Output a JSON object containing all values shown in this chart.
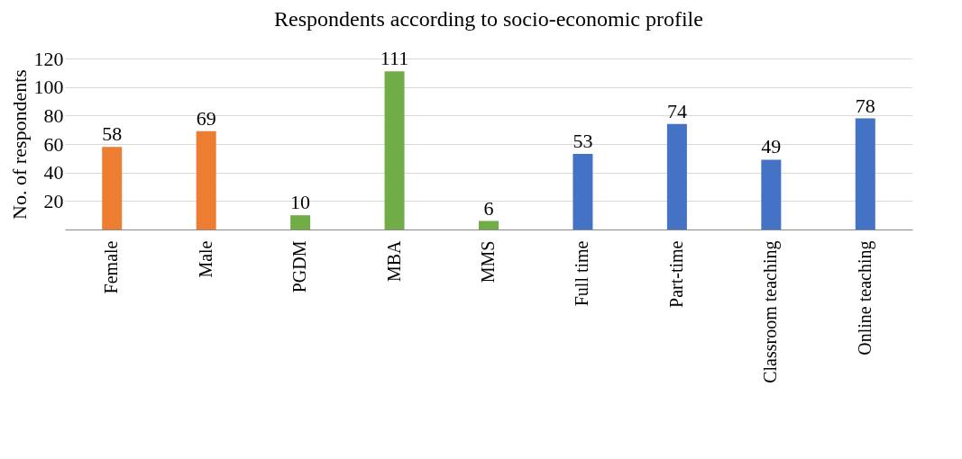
{
  "chart_data": {
    "type": "bar",
    "title": "Respondents according to socio-economic profile",
    "ylabel": "No. of respondents",
    "categories": [
      "Female",
      "Male",
      "PGDM",
      "MBA",
      "MMS",
      "Full time",
      "Part-time",
      "Classroom teaching",
      "Online teaching"
    ],
    "values": [
      58,
      69,
      10,
      111,
      6,
      53,
      74,
      49,
      78
    ],
    "colors": [
      "#ed7d31",
      "#ed7d31",
      "#70ad47",
      "#70ad47",
      "#70ad47",
      "#4472c4",
      "#4472c4",
      "#4472c4",
      "#4472c4"
    ],
    "ylim": [
      0,
      120
    ],
    "yticks": [
      20,
      40,
      60,
      80,
      100,
      120
    ],
    "grid": "y",
    "data_labels": true
  }
}
